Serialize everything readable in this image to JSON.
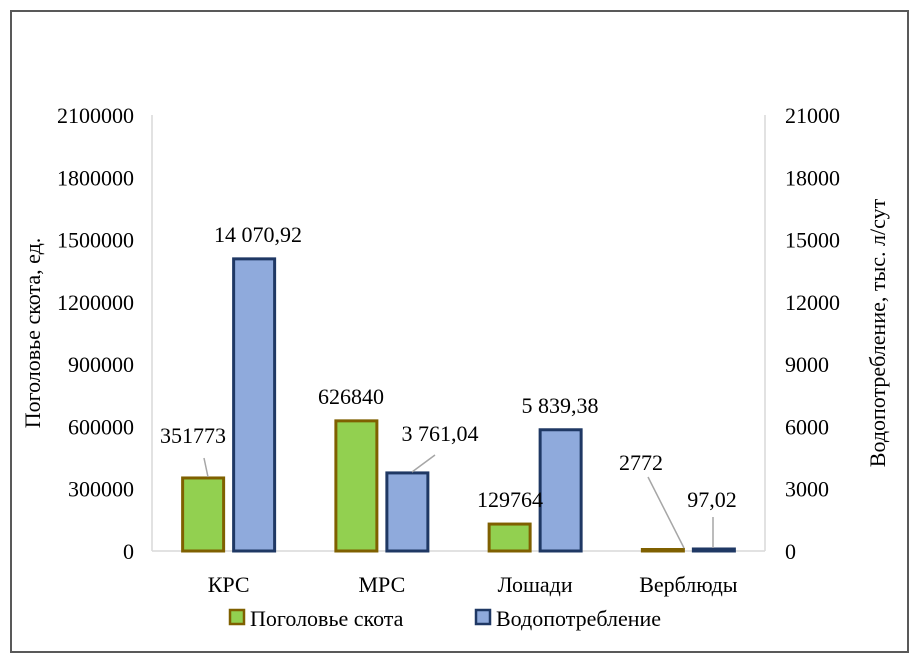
{
  "chart_data": {
    "type": "bar",
    "categories": [
      "КРС",
      "МРС",
      "Лошади",
      "Верблюды"
    ],
    "series": [
      {
        "name": "Поголовье скота",
        "axis": "left",
        "values": [
          351773,
          626840,
          129764,
          2772
        ],
        "labels": [
          "351773",
          "626840",
          "129764",
          "2772"
        ],
        "fill": "#92d050",
        "stroke": "#7f6000"
      },
      {
        "name": "Водопотребление",
        "axis": "right",
        "values": [
          14070.92,
          3761.04,
          5839.38,
          97.02
        ],
        "labels": [
          "14 070,92",
          "3 761,04",
          "5 839,38",
          "97,02"
        ],
        "fill": "#8faadc",
        "stroke": "#1f3864"
      }
    ],
    "left_axis": {
      "title": "Поголовье скота, ед.",
      "ylim": [
        0,
        2100000
      ],
      "ticks": [
        "0",
        "300000",
        "600000",
        "900000",
        "1200000",
        "1500000",
        "1800000",
        "2100000"
      ]
    },
    "right_axis": {
      "title": "Водопотребление, тыс. л/сут",
      "ylim": [
        0,
        21000
      ],
      "ticks": [
        "0",
        "3000",
        "6000",
        "9000",
        "12000",
        "15000",
        "18000",
        "21000"
      ]
    },
    "legend": {
      "position": "bottom",
      "entries": [
        "Поголовье скота",
        "Водопотребление"
      ]
    },
    "grid": false
  }
}
